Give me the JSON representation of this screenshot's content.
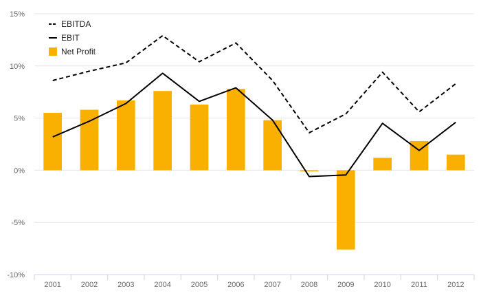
{
  "chart_data": {
    "type": "bar",
    "categories": [
      "2001",
      "2002",
      "2003",
      "2004",
      "2005",
      "2006",
      "2007",
      "2008",
      "2009",
      "2010",
      "2011",
      "2012"
    ],
    "ylim": [
      -10,
      15
    ],
    "yticks": [
      15,
      10,
      5,
      0,
      -5,
      -10
    ],
    "ytick_labels": [
      "15%",
      "10%",
      "5%",
      "0%",
      "-5%",
      "-10%"
    ],
    "grid": true,
    "legend_position": "top-left",
    "series": [
      {
        "name": "EBITDA",
        "kind": "line",
        "style": "dashed",
        "color": "#000000",
        "values": [
          8.6,
          9.5,
          10.3,
          12.9,
          10.4,
          12.2,
          8.6,
          3.6,
          5.4,
          9.4,
          5.6,
          8.3
        ]
      },
      {
        "name": "EBIT",
        "kind": "line",
        "style": "solid",
        "color": "#000000",
        "values": [
          3.2,
          4.7,
          6.4,
          9.3,
          6.6,
          7.9,
          4.8,
          -0.6,
          -0.45,
          4.5,
          1.9,
          4.6
        ]
      },
      {
        "name": "Net Profit",
        "kind": "bar",
        "color": "#f9b000",
        "values": [
          5.5,
          5.8,
          6.7,
          7.6,
          6.3,
          7.8,
          4.8,
          -0.1,
          -7.6,
          1.2,
          2.8,
          1.5
        ]
      }
    ]
  }
}
